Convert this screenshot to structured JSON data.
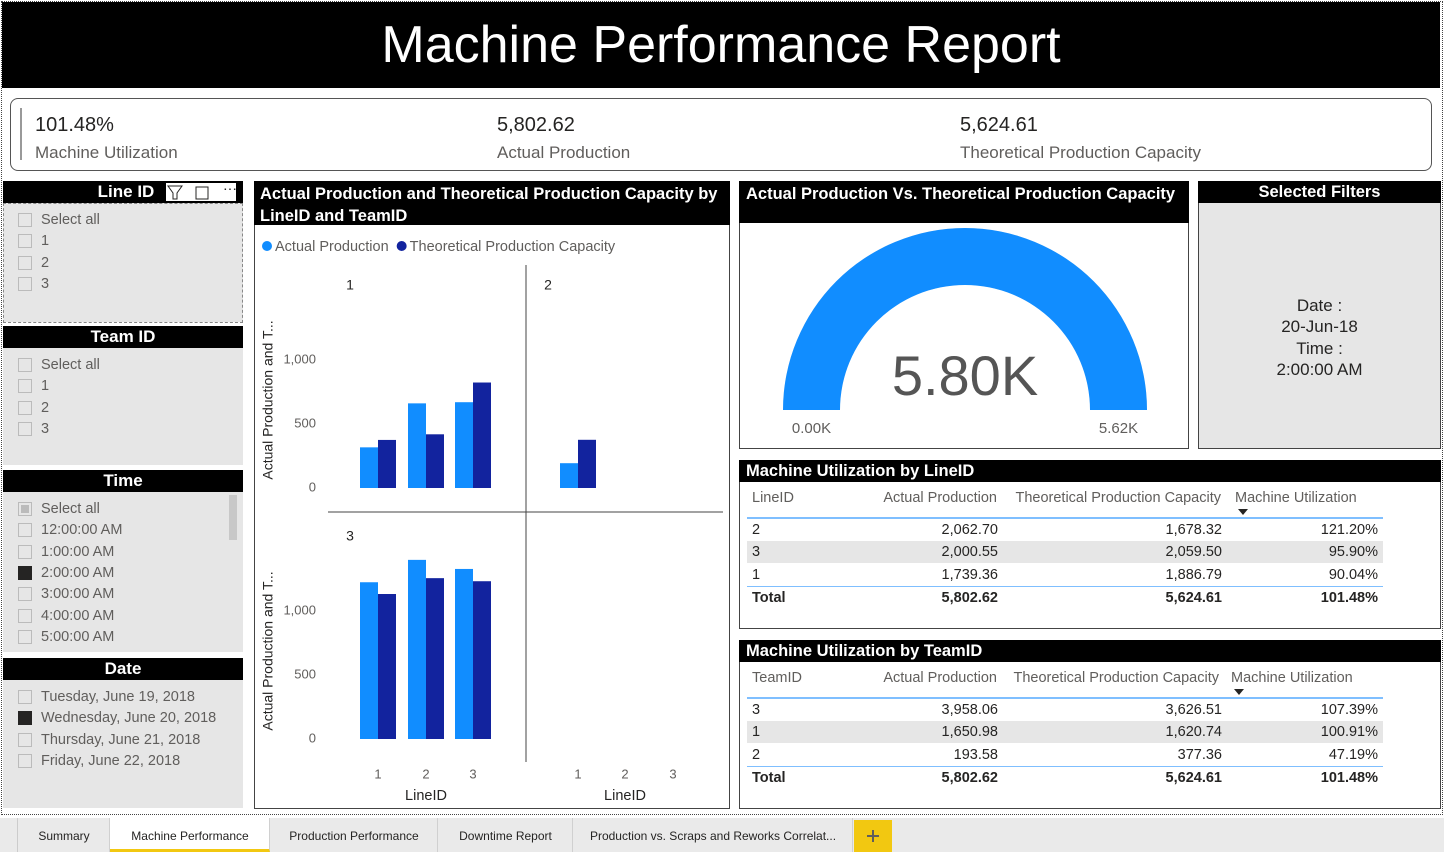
{
  "header": {
    "title": "Machine Performance Report"
  },
  "kpis": [
    {
      "value": "101.48%",
      "label": "Machine Utilization"
    },
    {
      "value": "5,802.62",
      "label": "Actual Production"
    },
    {
      "value": "5,624.61",
      "label": "Theoretical Production Capacity"
    }
  ],
  "slicers": [
    {
      "title": "Line ID",
      "items": [
        "Select all",
        "1",
        "2",
        "3"
      ]
    },
    {
      "title": "Team ID",
      "items": [
        "Select all",
        "1",
        "2",
        "3"
      ]
    },
    {
      "title": "Time",
      "items": [
        "Select all",
        "12:00:00 AM",
        "1:00:00 AM",
        "2:00:00 AM",
        "3:00:00 AM",
        "4:00:00 AM",
        "5:00:00 AM"
      ],
      "selected_index": 3
    },
    {
      "title": "Date",
      "items": [
        "Tuesday, June 19, 2018",
        "Wednesday, June 20, 2018",
        "Thursday, June 21, 2018",
        "Friday, June 22, 2018"
      ],
      "selected_index": 1
    }
  ],
  "bar_chart": {
    "type": "bar",
    "title": "Actual Production and Theoretical Production Capacity by LineID and TeamID",
    "x_label": "LineID",
    "y_label": "Actual Production and T...",
    "categories": [
      "1",
      "2",
      "3"
    ],
    "panels": [
      "1",
      "2",
      "3"
    ],
    "series": [
      {
        "name": "Actual Production",
        "color": "#118dff",
        "values": [
          [
            318,
            662,
            671
          ],
          [
            194,
            null,
            null
          ],
          [
            1226,
            1401,
            1330
          ]
        ]
      },
      {
        "name": "Theoretical Production Capacity",
        "color": "#12239e",
        "values": [
          [
            376,
            420,
            825
          ],
          [
            377,
            null,
            null
          ],
          [
            1134,
            1258,
            1234
          ]
        ]
      }
    ],
    "ylim": [
      0,
      1400
    ],
    "yticks": [
      0,
      500,
      {
        "value": 1000,
        "label": "1,000"
      }
    ]
  },
  "gauge": {
    "type": "gauge",
    "title": "Actual Production Vs. Theoretical Production Capacity",
    "value": 5802.62,
    "value_label": "5.80K",
    "min": 0,
    "min_label": "0.00K",
    "max": 5624.61,
    "max_label": "5.62K",
    "color": "#118dff"
  },
  "filters_card": {
    "title": "Selected Filters",
    "lines": [
      "Date :",
      "20-Jun-18",
      "Time :",
      "2:00:00 AM"
    ]
  },
  "tables": [
    {
      "title": "Machine Utilization by LineID",
      "columns": [
        "LineID",
        "Actual Production",
        "Theoretical Production Capacity",
        "Machine Utilization"
      ],
      "rows": [
        [
          "2",
          "2,062.70",
          "1,678.32",
          "121.20%"
        ],
        [
          "3",
          "2,000.55",
          "2,059.50",
          "95.90%"
        ],
        [
          "1",
          "1,739.36",
          "1,886.79",
          "90.04%"
        ]
      ],
      "total": [
        "Total",
        "5,802.62",
        "5,624.61",
        "101.48%"
      ]
    },
    {
      "title": "Machine Utilization by TeamID",
      "columns": [
        "TeamID",
        "Actual Production",
        "Theoretical Production Capacity",
        "Machine Utilization"
      ],
      "rows": [
        [
          "3",
          "3,958.06",
          "3,626.51",
          "107.39%"
        ],
        [
          "1",
          "1,650.98",
          "1,620.74",
          "100.91%"
        ],
        [
          "2",
          "193.58",
          "377.36",
          "47.19%"
        ]
      ],
      "total": [
        "Total",
        "5,802.62",
        "5,624.61",
        "101.48%"
      ]
    }
  ],
  "tabs": {
    "items": [
      "Summary",
      "Machine Performance",
      "Production Performance",
      "Downtime Report",
      "Production vs. Scraps and Reworks Correlat..."
    ],
    "active_index": 1
  }
}
